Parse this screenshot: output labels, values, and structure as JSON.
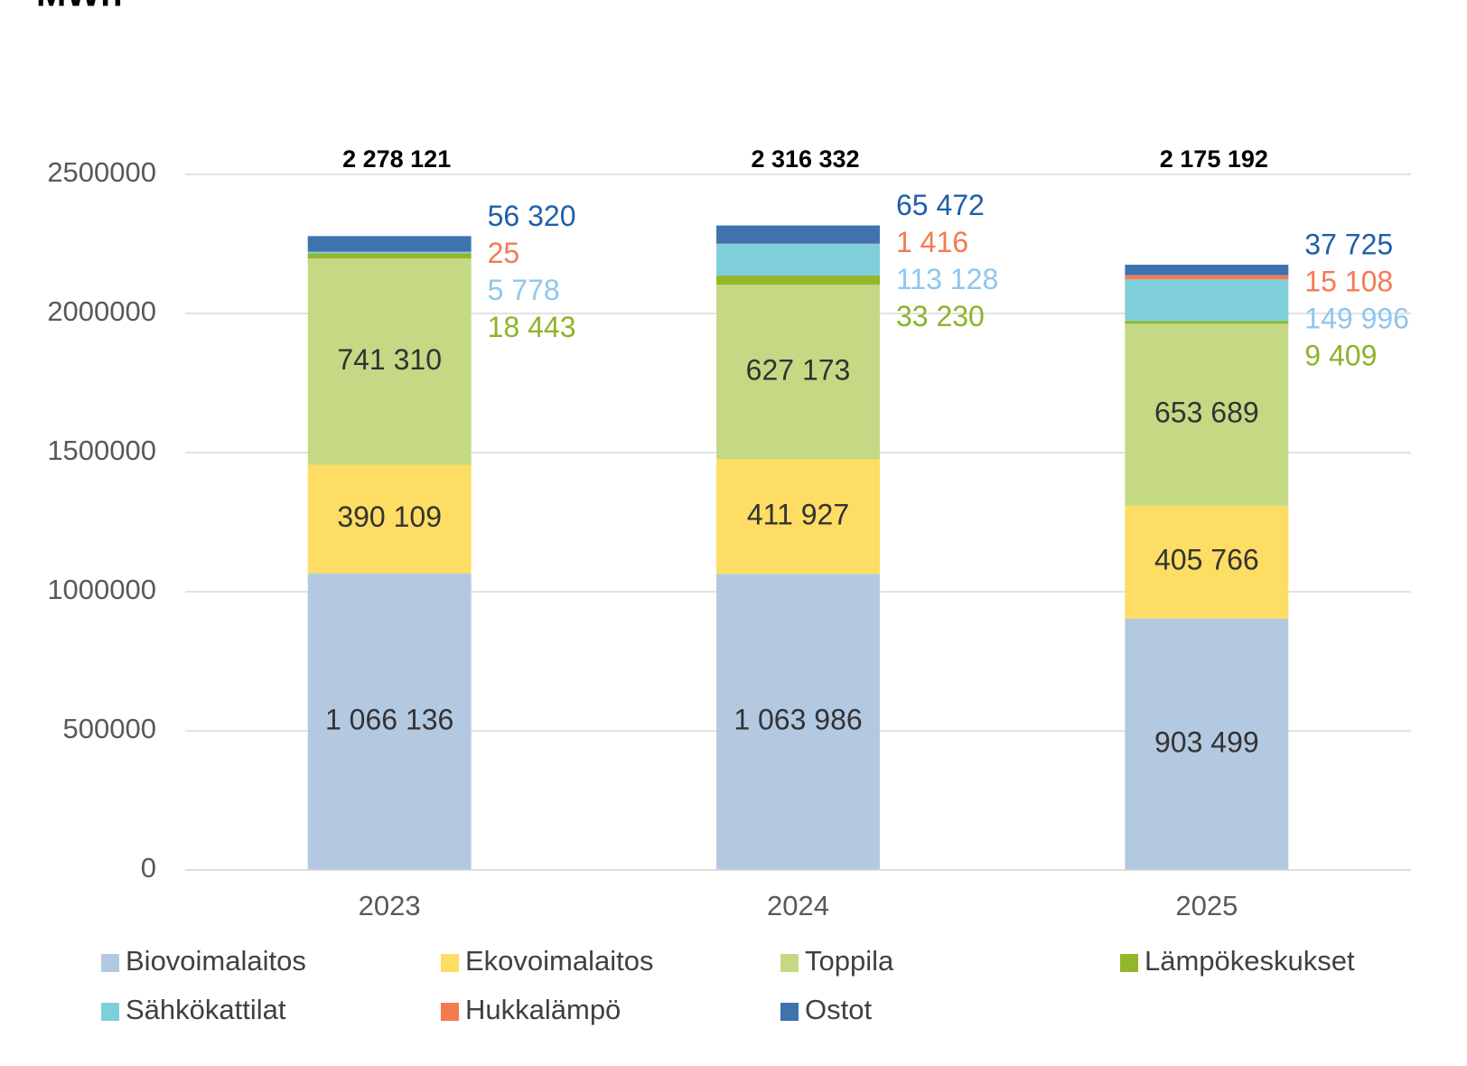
{
  "chart_data": {
    "type": "stacked_bar",
    "title": "MWh",
    "categories": [
      "2023",
      "2024",
      "2025"
    ],
    "series": [
      {
        "name": "Biovoimalaitos",
        "color": "#b3c9e1",
        "label_color": "#333333",
        "values": [
          1066136,
          1063986,
          903499
        ],
        "value_labels": [
          "1 066 136",
          "1 063 986",
          "903 499"
        ]
      },
      {
        "name": "Ekovoimalaitos",
        "color": "#fddd63",
        "label_color": "#333333",
        "values": [
          390109,
          411927,
          405766
        ],
        "value_labels": [
          "390 109",
          "411 927",
          "405 766"
        ]
      },
      {
        "name": "Toppila",
        "color": "#c5d985",
        "label_color": "#333333",
        "values": [
          741310,
          627173,
          653689
        ],
        "value_labels": [
          "741 310",
          "627 173",
          "653 689"
        ]
      },
      {
        "name": "Lämpökeskukset",
        "color": "#92b72a",
        "label_color": "#8db32a",
        "values": [
          18443,
          33230,
          9409
        ],
        "value_labels": [
          "18 443",
          "33 230",
          "9 409"
        ]
      },
      {
        "name": "Sähkökattilat",
        "color": "#7fcfdb",
        "label_color": "#8fc6ee",
        "values": [
          5778,
          113128,
          149996
        ],
        "value_labels": [
          "5 778",
          "113 128",
          "149 996"
        ]
      },
      {
        "name": "Hukkalämpö",
        "color": "#f47a52",
        "label_color": "#f47a52",
        "values": [
          25,
          1416,
          15108
        ],
        "value_labels": [
          "25",
          "1 416",
          "15 108"
        ]
      },
      {
        "name": "Ostot",
        "color": "#3f73b0",
        "label_color": "#1f5fa8",
        "values": [
          56320,
          65472,
          37725
        ],
        "value_labels": [
          "56 320",
          "65 472",
          "37 725"
        ]
      }
    ],
    "totals": [
      2278121,
      2316332,
      2175192
    ],
    "total_labels": [
      "2 278 121",
      "2 316 332",
      "2 175 192"
    ],
    "ylim": [
      0,
      2500000
    ],
    "yticks": [
      0,
      500000,
      1000000,
      1500000,
      2000000,
      2500000
    ],
    "grid": true,
    "legend": "bottom"
  }
}
